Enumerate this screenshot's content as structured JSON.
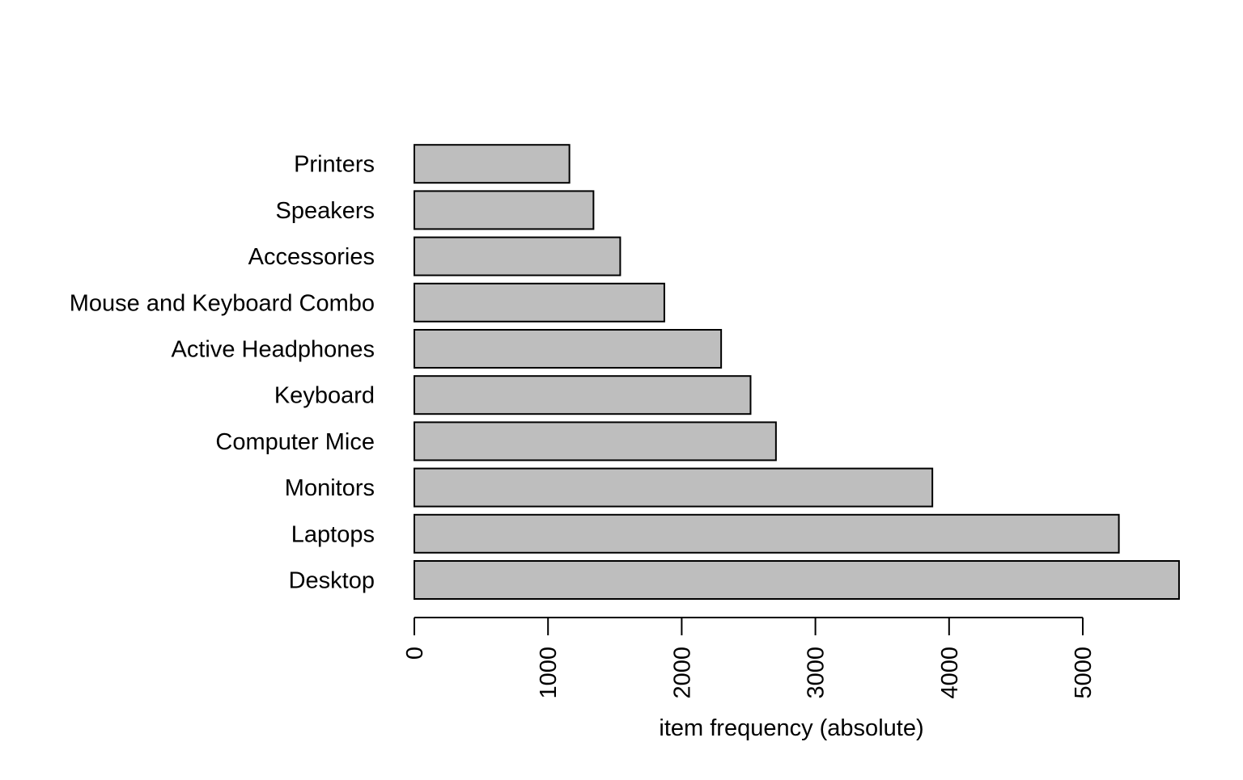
{
  "colors": {
    "bar_fill": "#bebebe",
    "bar_stroke": "#000000",
    "axis": "#000000",
    "background": "#ffffff"
  },
  "chart_data": {
    "type": "bar",
    "orientation": "horizontal",
    "categories": [
      "Desktop",
      "Laptops",
      "Monitors",
      "Computer Mice",
      "Keyboard",
      "Active Headphones",
      "Mouse and Keyboard Combo",
      "Accessories ",
      "Speakers",
      "Printers"
    ],
    "values": [
      5720,
      5270,
      3875,
      2705,
      2515,
      2295,
      1870,
      1540,
      1340,
      1160
    ],
    "title": "",
    "xlabel": "item frequency (absolute)",
    "ylabel": "",
    "xlim": [
      0,
      5720
    ],
    "x_ticks": [
      0,
      1000,
      2000,
      3000,
      4000,
      5000
    ],
    "x_tick_labels": [
      "0",
      "1000",
      "2000",
      "3000",
      "4000",
      "5000"
    ],
    "grid": false,
    "legend": "none"
  }
}
